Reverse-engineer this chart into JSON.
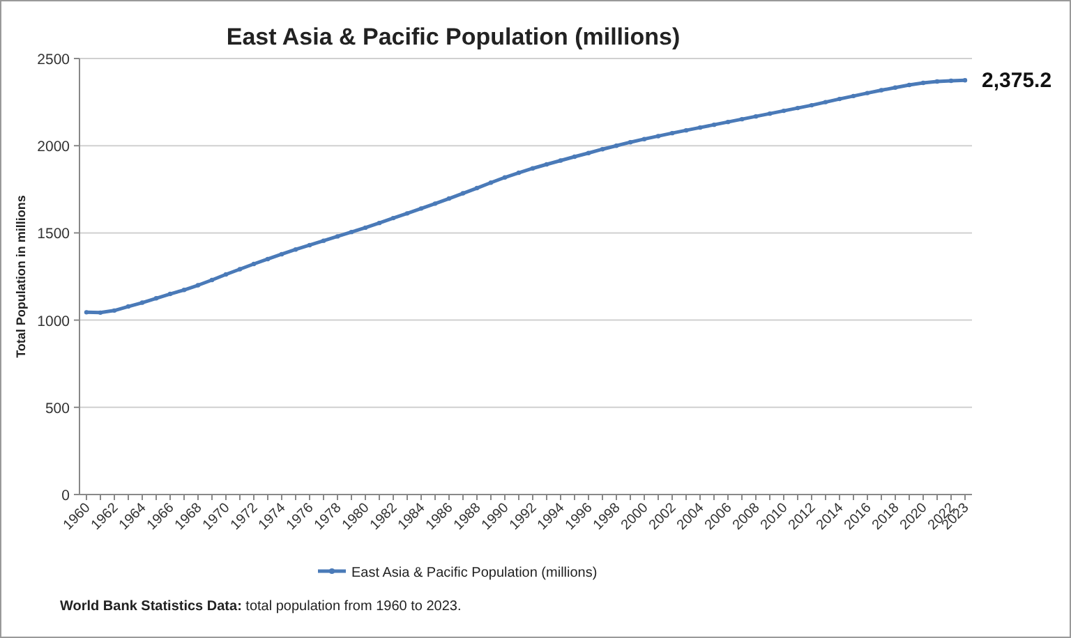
{
  "chart_data": {
    "type": "line",
    "title": "East Asia & Pacific Population (millions)",
    "ylabel": "Total Population  in millions",
    "categories": [
      "1960",
      null,
      "1962",
      null,
      "1964",
      null,
      "1966",
      null,
      "1968",
      null,
      "1970",
      null,
      "1972",
      null,
      "1974",
      null,
      "1976",
      null,
      "1978",
      null,
      "1980",
      null,
      "1982",
      null,
      "1984",
      null,
      "1986",
      null,
      "1988",
      null,
      "1990",
      null,
      "1992",
      null,
      "1994",
      null,
      "1996",
      null,
      "1998",
      null,
      "2000",
      null,
      "2002",
      null,
      "2004",
      null,
      "2006",
      null,
      "2008",
      null,
      "2010",
      null,
      "2012",
      null,
      "2014",
      null,
      "2016",
      null,
      "2018",
      null,
      "2020",
      null,
      "2022",
      "2023"
    ],
    "series": [
      {
        "name": "East Asia & Pacific Population (millions)",
        "color": "#4a7ab8",
        "values": [
          1045,
          1043,
          1055,
          1078,
          1100,
          1125,
          1150,
          1173,
          1200,
          1230,
          1262,
          1292,
          1322,
          1350,
          1378,
          1405,
          1430,
          1455,
          1480,
          1505,
          1530,
          1557,
          1585,
          1612,
          1640,
          1668,
          1697,
          1727,
          1757,
          1788,
          1818,
          1845,
          1870,
          1893,
          1915,
          1937,
          1958,
          1980,
          2000,
          2020,
          2038,
          2055,
          2072,
          2088,
          2104,
          2120,
          2136,
          2152,
          2168,
          2184,
          2200,
          2216,
          2232,
          2250,
          2268,
          2285,
          2302,
          2318,
          2333,
          2348,
          2360,
          2368,
          2372,
          2375.2
        ]
      }
    ],
    "ylim": [
      0,
      2500
    ],
    "yticks": [
      0,
      500,
      1000,
      1500,
      2000,
      2500
    ],
    "grid": "y",
    "legend": "bottom",
    "marker": "circle",
    "line_style": "solid",
    "annotations": [
      {
        "text": "2,375.2",
        "x": "2023",
        "y": 2375.2
      },
      "World Bank Statistics Data: total population from 1960 to 2023."
    ]
  }
}
